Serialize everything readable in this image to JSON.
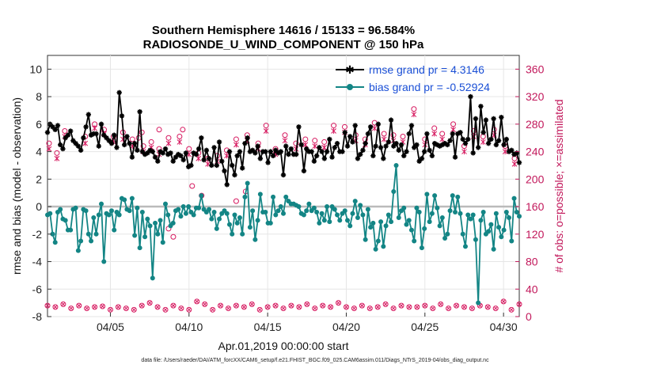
{
  "chart_data": {
    "type": "line",
    "title_line1": "Southern Hemisphere 14616 / 15133 = 96.584%",
    "title_line2": "RADIOSONDE_U_WIND_COMPONENT @ 150 hPa",
    "xlabel": "Apr.01,2019 00:00:00 start",
    "ylabel_left": "rmse and bias (model - observation)",
    "ylabel_right": "# of obs: o=possible; ×=assimilated",
    "footer": "data file: /Users/raeder/DAI/ATM_forcXX/CAM6_setup/f.e21.FHIST_BGC.f09_025.CAM6assim.011/Diags_NTrS_2019-04/obs_diag_output.nc",
    "xlim": [
      1,
      31
    ],
    "ylim_left": [
      -8,
      11
    ],
    "ylim_right": [
      0,
      380
    ],
    "x_ticks": [
      5,
      10,
      15,
      20,
      25,
      30
    ],
    "x_tick_labels": [
      "04/05",
      "04/10",
      "04/15",
      "04/20",
      "04/25",
      "04/30"
    ],
    "y_left_ticks": [
      -8,
      -6,
      -4,
      -2,
      0,
      2,
      4,
      6,
      8,
      10
    ],
    "y_left_tick_labels": [
      "-8",
      "-6",
      "-4",
      "-2",
      "0",
      "2",
      "4",
      "6",
      "8",
      "10"
    ],
    "y_right_ticks": [
      0,
      40,
      80,
      120,
      160,
      200,
      240,
      280,
      320,
      360
    ],
    "y_right_tick_labels": [
      "0",
      "40",
      "80",
      "120",
      "160",
      "200",
      "240",
      "280",
      "320",
      "360"
    ],
    "legend": [
      "rmse grand pr = 4.3146",
      "bias grand pr = -0.52924"
    ],
    "legend_position": "top-right",
    "colors": {
      "rmse": "#000000",
      "bias": "#138585",
      "obs": "#d6175e",
      "zero": "#bbbbbb"
    },
    "series": [
      {
        "name": "rmse",
        "values": [
          5.4,
          6.0,
          5.8,
          5.6,
          5.9,
          4.5,
          4.2,
          5.0,
          5.2,
          5.5,
          4.8,
          4.6,
          4.4,
          4.1,
          5.0,
          5.8,
          6.7,
          5.2,
          5.3,
          5.3,
          4.4,
          6.0,
          5.2,
          5.0,
          4.8,
          4.6,
          5.2,
          4.3,
          8.3,
          6.6,
          4.5,
          5.1,
          4.6,
          3.6,
          4.6,
          4.1,
          6.9,
          4.0,
          3.8,
          3.9,
          4.1,
          4.0,
          3.6,
          3.3,
          4.0,
          3.9,
          4.2,
          3.8,
          3.9,
          3.3,
          3.6,
          3.8,
          3.7,
          3.4,
          3.9,
          2.9,
          3.0,
          3.9,
          3.8,
          4.2,
          5.0,
          3.4,
          4.1,
          3.5,
          3.0,
          4.3,
          3.0,
          4.7,
          3.3,
          2.6,
          1.6,
          4.0,
          3.0,
          2.3,
          3.7,
          4.0,
          2.8,
          4.6,
          5.0,
          4.0,
          4.1,
          3.9,
          4.4,
          3.5,
          4.0,
          4.0,
          3.2,
          4.0,
          3.7,
          4.1,
          3.9,
          4.0,
          2.3,
          4.4,
          3.8,
          4.2,
          3.8,
          3.8,
          5.8,
          4.5,
          2.6,
          4.2,
          4.0,
          4.0,
          3.3,
          3.7,
          4.3,
          4.0,
          3.5,
          4.0,
          4.9,
          3.6,
          4.3,
          4.6,
          4.0,
          4.0,
          5.4,
          4.4,
          5.1,
          4.7,
          5.9,
          3.5,
          3.8,
          4.1,
          4.6,
          5.3,
          5.8,
          3.7,
          4.4,
          6.0,
          4.3,
          3.5,
          4.4,
          4.7,
          6.3,
          4.4,
          4.6,
          4.1,
          4.5,
          3.7,
          4.0,
          5.3,
          5.9,
          4.3,
          4.5,
          3.3,
          3.5,
          4.0,
          5.3,
          4.1,
          3.7,
          4.6,
          4.5,
          4.4,
          4.5,
          4.6,
          4.5,
          4.8,
          5.3,
          3.6,
          5.3,
          5.4,
          4.9,
          4.6,
          4.9,
          8.0,
          3.9,
          6.4,
          4.3,
          7.3,
          5.4,
          6.3,
          4.6,
          4.9,
          6.4,
          4.5,
          4.8,
          6.5,
          4.5,
          4.9,
          4.0,
          4.1,
          3.8,
          3.9,
          3.2
        ]
      },
      {
        "name": "bias",
        "values": [
          -0.6,
          -0.5,
          -2.0,
          -2.6,
          -0.4,
          -0.2,
          -0.9,
          -1.0,
          -1.7,
          -1.7,
          -0.2,
          -0.1,
          -3.2,
          -2.5,
          -0.2,
          -0.3,
          -2.0,
          -2.5,
          -0.8,
          -2.0,
          -0.6,
          0.2,
          -4.0,
          -0.5,
          -0.6,
          -0.3,
          -1.7,
          -0.4,
          -0.6,
          0.6,
          0.5,
          -0.2,
          -0.3,
          0.6,
          -2.1,
          -0.1,
          -3.0,
          -0.4,
          -2.2,
          -0.9,
          -1.4,
          -5.2,
          -1.2,
          -2.0,
          -1.0,
          -2.6,
          0.2,
          -0.6,
          -1.4,
          -1.2,
          -0.3,
          -0.2,
          -0.7,
          0.0,
          -0.5,
          0.0,
          -0.4,
          -0.6,
          -0.1,
          -0.1,
          0.8,
          -0.2,
          -0.4,
          -0.2,
          -0.9,
          -0.4,
          -1.6,
          -0.9,
          -0.5,
          -0.3,
          -0.5,
          -1.3,
          -2.0,
          -0.6,
          -1.2,
          -0.8,
          -2.0,
          0.7,
          1.7,
          -1.5,
          -0.3,
          -2.4,
          -1.0,
          0.9,
          -0.4,
          -0.4,
          -1.2,
          -1.2,
          0.7,
          -0.6,
          -0.3,
          0.0,
          -0.5,
          0.7,
          0.4,
          0.2,
          0.2,
          0.1,
          0.0,
          -0.5,
          -0.6,
          -0.3,
          0.2,
          -0.3,
          -0.1,
          -0.4,
          -1.2,
          -0.5,
          -1.0,
          0.0,
          -1.1,
          0.0,
          -0.2,
          -0.6,
          -1.0,
          -0.5,
          -0.3,
          -1.0,
          -1.4,
          -0.5,
          0.4,
          -0.8,
          0.1,
          -0.6,
          -2.4,
          -0.2,
          -1.5,
          -1.2,
          -3.1,
          -2.5,
          -1.1,
          -2.9,
          -1.4,
          -0.6,
          -1.1,
          1.1,
          3.0,
          -0.8,
          -0.3,
          -0.1,
          -1.3,
          -1.0,
          -1.7,
          -2.5,
          -0.1,
          -0.4,
          -3.0,
          -1.6,
          0.9,
          -1.1,
          -0.5,
          0.8,
          -0.1,
          -1.4,
          -0.8,
          -2.3,
          -2.0,
          -0.3,
          0.8,
          -0.4,
          0.7,
          -0.5,
          -2.0,
          -2.9,
          -0.6,
          -0.9,
          -0.6,
          -2.4,
          -7.0,
          -1.0,
          -0.4,
          -2.0,
          -1.8,
          -1.3,
          -3.1,
          -0.5,
          -1.5,
          -2.2,
          -1.7,
          -0.4,
          -0.8,
          -2.5,
          0.6,
          -0.4,
          -0.7
        ]
      },
      {
        "name": "obs_possible_high",
        "x": [
          1.1,
          1.6,
          2.1,
          3.4,
          4.0,
          4.6,
          5.2,
          5.8,
          6.4,
          7.1,
          7.6,
          8.1,
          8.7,
          9.4,
          10.0,
          10.6,
          11.2,
          11.8,
          12.4,
          13.0,
          13.7,
          14.4,
          14.9,
          15.5,
          16.1,
          16.8,
          17.4,
          18.0,
          18.6,
          19.2,
          19.9,
          20.6,
          21.2,
          21.8,
          22.4,
          23.0,
          23.6,
          24.3,
          25.0,
          25.6,
          26.1,
          26.8,
          27.5,
          28.1,
          28.7,
          29.4,
          30.1,
          30.7
        ],
        "values": [
          252,
          238,
          270,
          262,
          280,
          272,
          262,
          268,
          258,
          248,
          254,
          244,
          260,
          262,
          244,
          238,
          230,
          234,
          242,
          258,
          264,
          252,
          278,
          244,
          264,
          252,
          258,
          256,
          254,
          278,
          276,
          264,
          258,
          282,
          266,
          264,
          262,
          302,
          258,
          274,
          266,
          280,
          248,
          270,
          262,
          272,
          248,
          230
        ]
      },
      {
        "name": "obs_assimilated_high",
        "x": [
          1.1,
          1.6,
          2.1,
          3.4,
          4.0,
          4.6,
          5.2,
          5.8,
          6.4,
          7.1,
          7.6,
          8.1,
          8.7,
          9.4,
          10.0,
          10.6,
          11.2,
          11.8,
          12.4,
          13.0,
          13.7,
          14.4,
          14.9,
          15.5,
          16.1,
          16.8,
          17.4,
          18.0,
          18.6,
          19.2,
          19.9,
          20.6,
          21.2,
          21.8,
          22.4,
          23.0,
          23.6,
          24.3,
          25.0,
          25.6,
          26.1,
          26.8,
          27.5,
          28.1,
          28.7,
          29.4,
          30.1,
          30.7
        ],
        "values": [
          244,
          230,
          262,
          252,
          274,
          266,
          254,
          258,
          248,
          240,
          246,
          236,
          252,
          254,
          236,
          230,
          222,
          226,
          234,
          250,
          256,
          244,
          270,
          236,
          256,
          244,
          250,
          248,
          246,
          270,
          268,
          256,
          250,
          274,
          258,
          256,
          254,
          294,
          250,
          266,
          258,
          272,
          240,
          262,
          254,
          264,
          240,
          222
        ]
      },
      {
        "name": "obs_outliers",
        "x": [
          6.8,
          7.0,
          8.1,
          8.7,
          9.0,
          9.6,
          10.2,
          10.8,
          13.0,
          13.6
        ],
        "values": [
          260,
          268,
          272,
          128,
          116,
          272,
          190,
          176,
          168,
          182
        ]
      },
      {
        "name": "obs_possible_low",
        "x": [
          1,
          1.5,
          2,
          2.5,
          3,
          3.5,
          4,
          4.5,
          5,
          5.5,
          6,
          6.5,
          7,
          7.5,
          8,
          8.5,
          9,
          9.5,
          10,
          10.5,
          11,
          11.5,
          12,
          12.5,
          13,
          13.5,
          14,
          14.5,
          15,
          15.5,
          16,
          16.5,
          17,
          17.5,
          18,
          18.5,
          19,
          19.5,
          20,
          20.5,
          21,
          21.5,
          22,
          22.5,
          23,
          23.5,
          24,
          24.5,
          25,
          25.5,
          26,
          26.5,
          27,
          27.5,
          28,
          28.5,
          29,
          29.5,
          30,
          30.5,
          31
        ],
        "values": [
          16,
          14,
          18,
          12,
          16,
          12,
          14,
          15,
          10,
          14,
          12,
          10,
          16,
          20,
          14,
          10,
          16,
          12,
          10,
          22,
          18,
          10,
          16,
          12,
          16,
          14,
          18,
          10,
          14,
          16,
          12,
          16,
          14,
          18,
          12,
          16,
          14,
          20,
          14,
          12,
          16,
          12,
          14,
          18,
          12,
          16,
          14,
          14,
          16,
          12,
          18,
          12,
          16,
          14,
          12,
          16,
          14,
          12,
          22,
          10,
          18
        ]
      }
    ]
  }
}
